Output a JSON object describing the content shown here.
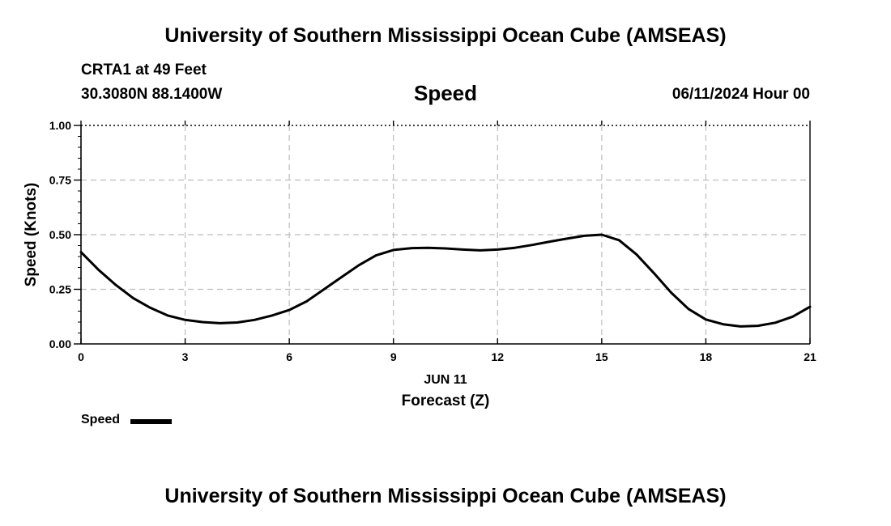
{
  "header": {
    "title": "University of Southern Mississippi Ocean Cube (AMSEAS)",
    "station": "CRTA1 at 49 Feet",
    "coordinates": "30.3080N  88.1400W",
    "datetime": "06/11/2024 Hour 00"
  },
  "footer": {
    "title": "University of Southern Mississippi Ocean Cube (AMSEAS)"
  },
  "legend": {
    "label": "Speed",
    "color": "#000000"
  },
  "chart_data": {
    "type": "line",
    "title": "Speed",
    "xlabel": "Forecast (Z)",
    "xsublabel": "JUN 11",
    "ylabel": "Speed (Knots)",
    "xlim": [
      0,
      21
    ],
    "ylim": [
      0,
      1
    ],
    "x_ticks": [
      0,
      3,
      6,
      9,
      12,
      15,
      18,
      21
    ],
    "x_tick_labels": [
      "0",
      "3",
      "6",
      "9",
      "12",
      "15",
      "18",
      "21"
    ],
    "y_ticks": [
      0,
      0.25,
      0.5,
      0.75,
      1.0
    ],
    "y_tick_labels": [
      "0.00",
      "0.25",
      "0.50",
      "0.75",
      "1.00"
    ],
    "grid": true,
    "series": [
      {
        "name": "Speed",
        "color": "#000000",
        "x": [
          0,
          0.5,
          1,
          1.5,
          2,
          2.5,
          3,
          3.5,
          4,
          4.5,
          5,
          5.5,
          6,
          6.5,
          7,
          7.5,
          8,
          8.5,
          9,
          9.5,
          10,
          10.5,
          11,
          11.5,
          12,
          12.5,
          13,
          13.5,
          14,
          14.5,
          15,
          15.5,
          16,
          16.5,
          17,
          17.5,
          18,
          18.5,
          19,
          19.5,
          20,
          20.5,
          21
        ],
        "values": [
          0.42,
          0.34,
          0.27,
          0.21,
          0.165,
          0.13,
          0.11,
          0.1,
          0.095,
          0.098,
          0.11,
          0.13,
          0.155,
          0.195,
          0.25,
          0.305,
          0.36,
          0.405,
          0.43,
          0.438,
          0.44,
          0.437,
          0.432,
          0.428,
          0.432,
          0.44,
          0.453,
          0.468,
          0.482,
          0.495,
          0.5,
          0.475,
          0.41,
          0.325,
          0.235,
          0.16,
          0.112,
          0.09,
          0.08,
          0.083,
          0.097,
          0.125,
          0.17
        ]
      }
    ]
  }
}
